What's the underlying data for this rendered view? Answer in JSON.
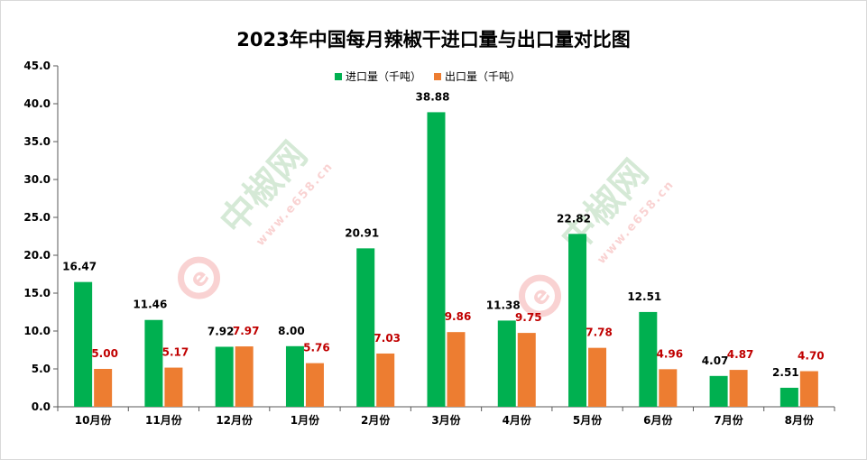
{
  "chart_data": {
    "type": "bar",
    "title": "2023年中国每月辣椒干进口量与出口量对比图",
    "categories": [
      "10月份",
      "11月份",
      "12月份",
      "1月份",
      "2月份",
      "3月份",
      "4月份",
      "5月份",
      "6月份",
      "7月份",
      "8月份"
    ],
    "series": [
      {
        "name": "进口量（千吨）",
        "color": "#00b050",
        "label_color": "#000000",
        "values": [
          16.47,
          11.46,
          7.92,
          8.0,
          20.91,
          38.88,
          11.38,
          22.82,
          12.51,
          4.07,
          2.51
        ],
        "labels": [
          "16.47",
          "11.46",
          "7.92",
          "8.00",
          "20.91",
          "38.88",
          "11.38",
          "22.82",
          "12.51",
          "4.07",
          "2.51"
        ]
      },
      {
        "name": "出口量（千吨）",
        "color": "#ed7d31",
        "label_color": "#c00000",
        "values": [
          5.0,
          5.17,
          7.97,
          5.76,
          7.03,
          9.86,
          9.75,
          7.78,
          4.96,
          4.87,
          4.7
        ],
        "labels": [
          "5.00",
          "5.17",
          "7.97",
          "5.76",
          "7.03",
          "9.86",
          "9.75",
          "7.78",
          "4.96",
          "4.87",
          "4.70"
        ]
      }
    ],
    "ylim": [
      0,
      45
    ],
    "yticks": [
      "0.0",
      "5.0",
      "10.0",
      "15.0",
      "20.0",
      "25.0",
      "30.0",
      "35.0",
      "40.0",
      "45.0"
    ],
    "grid": false,
    "legend_position": "top-center"
  },
  "watermark": {
    "brand": "中椒网",
    "url": "www.e658.cn",
    "logo_letter": "e"
  }
}
